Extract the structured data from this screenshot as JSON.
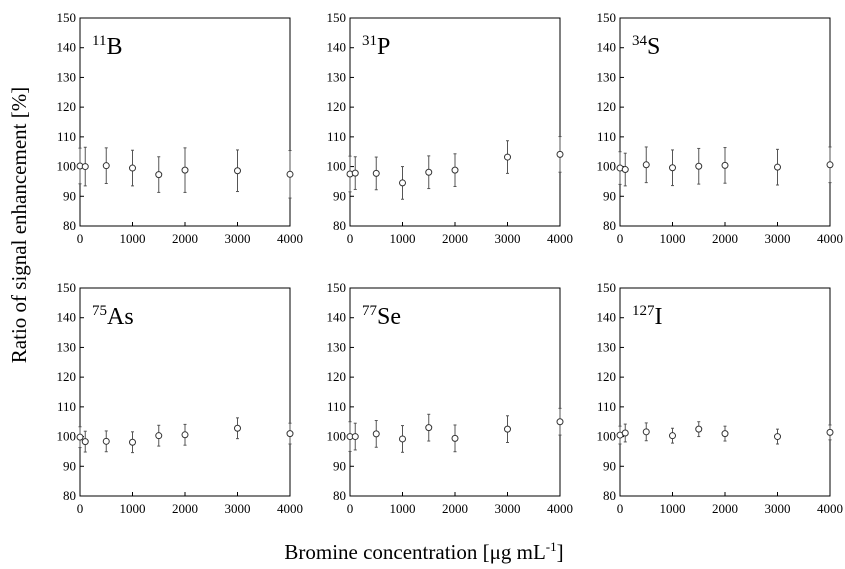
{
  "chart_data": {
    "type": "scatter",
    "ylabel": "Ratio of signal enhancement [%]",
    "xlabel_main": "Bromine concentration [μg mL",
    "xlabel_sup": "-1",
    "xlabel_tail": "]",
    "xlim": [
      0,
      4000
    ],
    "ylim": [
      80,
      150
    ],
    "xticks": [
      "0",
      "1000",
      "2000",
      "3000",
      "4000"
    ],
    "yticks": [
      "80",
      "90",
      "100",
      "110",
      "120",
      "130",
      "140",
      "150"
    ],
    "error_bars": true,
    "marker": "open-circle",
    "panels": [
      {
        "mass": "11",
        "element": "B",
        "x": [
          0,
          100,
          500,
          1000,
          1500,
          2000,
          3000,
          4000
        ],
        "y": [
          100.2,
          100.0,
          100.3,
          99.5,
          97.3,
          98.8,
          98.6,
          97.4
        ],
        "err": [
          6,
          6.5,
          6,
          6,
          6,
          7.5,
          7,
          8
        ]
      },
      {
        "mass": "31",
        "element": "P",
        "x": [
          0,
          100,
          500,
          1000,
          1500,
          2000,
          3000,
          4000
        ],
        "y": [
          97.5,
          97.8,
          97.7,
          94.5,
          98.1,
          98.8,
          103.2,
          104.1
        ],
        "err": [
          6,
          5.5,
          5.5,
          5.5,
          5.5,
          5.5,
          5.5,
          6
        ]
      },
      {
        "mass": "34",
        "element": "S",
        "x": [
          0,
          100,
          500,
          1000,
          1500,
          2000,
          3000,
          4000
        ],
        "y": [
          99.5,
          99.0,
          100.6,
          99.6,
          100.1,
          100.4,
          99.8,
          100.6
        ],
        "err": [
          5.5,
          5.5,
          6,
          6,
          6,
          6,
          6,
          6
        ]
      },
      {
        "mass": "75",
        "element": "As",
        "x": [
          0,
          100,
          500,
          1000,
          1500,
          2000,
          3000,
          4000
        ],
        "y": [
          99.8,
          98.3,
          98.4,
          98.1,
          100.3,
          100.6,
          102.8,
          101.0
        ],
        "err": [
          3.5,
          3.5,
          3.5,
          3.5,
          3.5,
          3.5,
          3.5,
          3.5
        ]
      },
      {
        "mass": "77",
        "element": "Se",
        "x": [
          0,
          100,
          500,
          1000,
          1500,
          2000,
          3000,
          4000
        ],
        "y": [
          100.0,
          100.0,
          100.9,
          99.2,
          103.0,
          99.4,
          102.5,
          105.0
        ],
        "err": [
          5,
          4.5,
          4.5,
          4.5,
          4.5,
          4.5,
          4.5,
          4.5
        ]
      },
      {
        "mass": "127",
        "element": "I",
        "x": [
          0,
          100,
          500,
          1000,
          1500,
          2000,
          3000,
          4000
        ],
        "y": [
          100.5,
          101.2,
          101.6,
          100.3,
          102.5,
          101.0,
          100.0,
          101.4
        ],
        "err": [
          3,
          3,
          3,
          2.5,
          2.5,
          2.5,
          2.5,
          2.5
        ]
      }
    ]
  }
}
